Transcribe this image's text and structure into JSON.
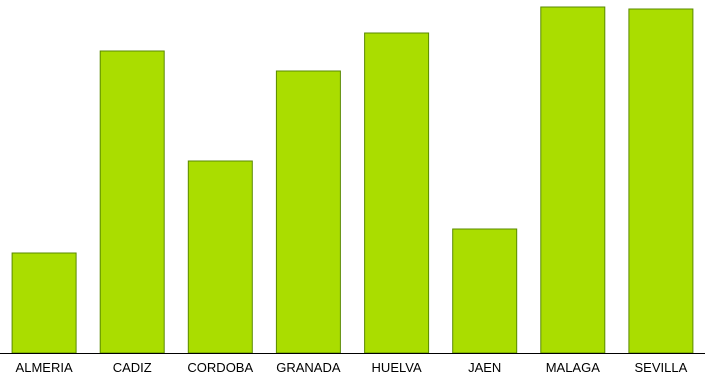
{
  "chart_data": {
    "type": "bar",
    "categories": [
      "ALMERIA",
      "CADIZ",
      "CORDOBA",
      "GRANADA",
      "HUELVA",
      "JAEN",
      "MALAGA",
      "SEVILLA"
    ],
    "values": [
      100,
      302,
      192,
      282,
      320,
      124,
      346,
      344
    ],
    "ylim": [
      0,
      346
    ],
    "grid": false,
    "legend": "none",
    "bar_color": "#aadd00",
    "bar_stroke": "#5a8a00",
    "axis_color": "#000000"
  }
}
